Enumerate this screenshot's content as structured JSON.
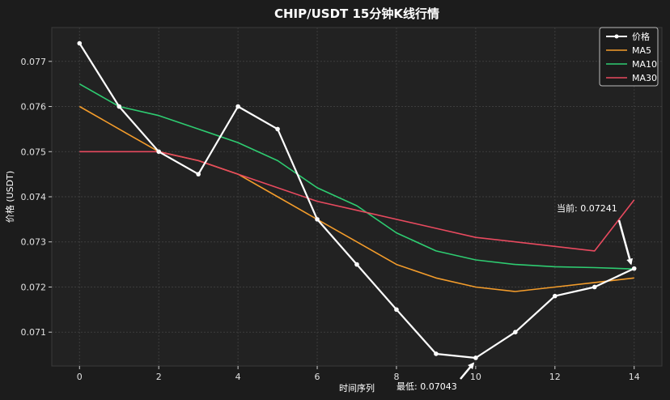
{
  "chart_data": {
    "type": "line",
    "title": "CHIP/USDT 15分钟K线行情",
    "xlabel": "时间序列",
    "ylabel": "价格 (USDT)",
    "x": [
      0,
      1,
      2,
      3,
      4,
      5,
      6,
      7,
      8,
      9,
      10,
      11,
      12,
      13,
      14
    ],
    "xlim": [
      -0.7,
      14.7
    ],
    "ylim": [
      0.07025,
      0.07775
    ],
    "x_ticks": [
      "0",
      "2",
      "4",
      "6",
      "8",
      "10",
      "12",
      "14"
    ],
    "x_tick_values": [
      0,
      2,
      4,
      6,
      8,
      10,
      12,
      14
    ],
    "y_ticks": [
      "0.071",
      "0.072",
      "0.073",
      "0.074",
      "0.075",
      "0.076",
      "0.077"
    ],
    "y_tick_values": [
      0.071,
      0.072,
      0.073,
      0.074,
      0.075,
      0.076,
      0.077
    ],
    "grid": true,
    "legend_position": "top-right",
    "series": [
      {
        "name": "价格",
        "color": "#ffffff",
        "markers": true,
        "values": [
          0.0774,
          0.076,
          0.075,
          0.0745,
          0.076,
          0.0755,
          0.0735,
          0.0725,
          0.0715,
          0.07052,
          0.07043,
          0.071,
          0.0718,
          0.072,
          0.07241
        ]
      },
      {
        "name": "MA5",
        "color": "#f39c2b",
        "markers": false,
        "values": [
          0.076,
          0.0755,
          0.075,
          0.0748,
          0.0745,
          0.074,
          0.0735,
          0.073,
          0.0725,
          0.0722,
          0.072,
          0.0719,
          0.072,
          0.0721,
          0.0722
        ]
      },
      {
        "name": "MA10",
        "color": "#2ecc71",
        "markers": false,
        "values": [
          0.0765,
          0.076,
          0.0758,
          0.0755,
          0.0752,
          0.0748,
          0.0742,
          0.0738,
          0.0732,
          0.0728,
          0.0726,
          0.0725,
          0.07245,
          0.07243,
          0.0724
        ]
      },
      {
        "name": "MA30",
        "color": "#e84a5f",
        "markers": false,
        "values": [
          0.075,
          0.075,
          0.075,
          0.0748,
          0.0745,
          0.0742,
          0.0739,
          0.0737,
          0.0735,
          0.0733,
          0.0731,
          0.073,
          0.0729,
          0.0728,
          0.07393
        ]
      }
    ],
    "annotations": [
      {
        "text": "最低: 0.07043",
        "x": 10,
        "y": 0.07043
      },
      {
        "text": "当前: 0.07241",
        "x": 14,
        "y": 0.07241
      }
    ]
  }
}
